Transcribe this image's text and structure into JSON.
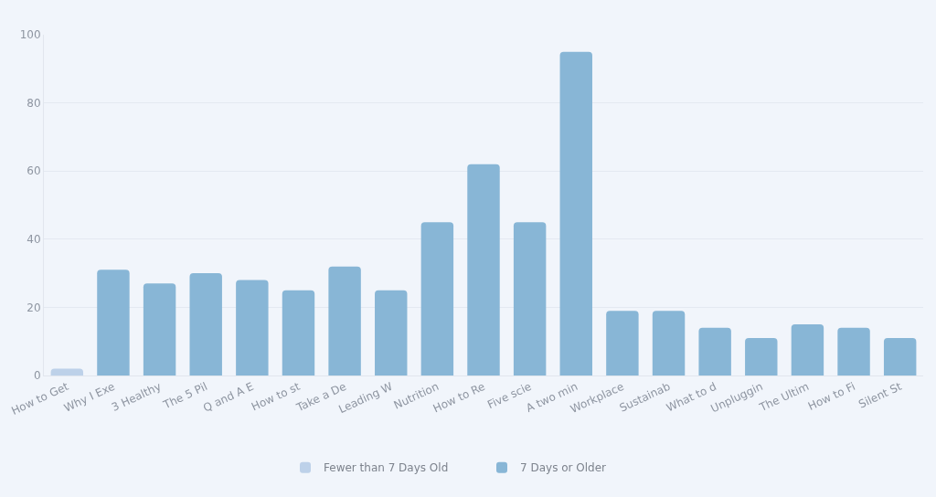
{
  "chart_data": {
    "type": "bar",
    "categories": [
      "How to Get",
      "Why I Exe",
      "3 Healthy",
      "The 5 Pil",
      "Q and A E",
      "How to st",
      "Take a De",
      "Leading W",
      "Nutrition",
      "How to Re",
      "Five scie",
      "A two min",
      "Workplace",
      "Sustainab",
      "What to d",
      "Unpluggin",
      "The Ultim",
      "How to Fi",
      "Silent St"
    ],
    "series": [
      {
        "name": "Fewer than 7 Days Old",
        "color": "#bdd1e9",
        "values": [
          2,
          null,
          null,
          null,
          null,
          null,
          null,
          null,
          null,
          null,
          null,
          null,
          null,
          null,
          null,
          null,
          null,
          null,
          null
        ]
      },
      {
        "name": "7 Days or Older",
        "color": "#88b6d6",
        "values": [
          null,
          31,
          27,
          30,
          28,
          25,
          32,
          25,
          45,
          62,
          45,
          95,
          19,
          19,
          14,
          11,
          15,
          14,
          11
        ]
      }
    ],
    "ylim": [
      0,
      100
    ],
    "yticks": [
      0,
      20,
      40,
      60,
      80,
      100
    ],
    "grid": "y",
    "legend": "bottom"
  }
}
